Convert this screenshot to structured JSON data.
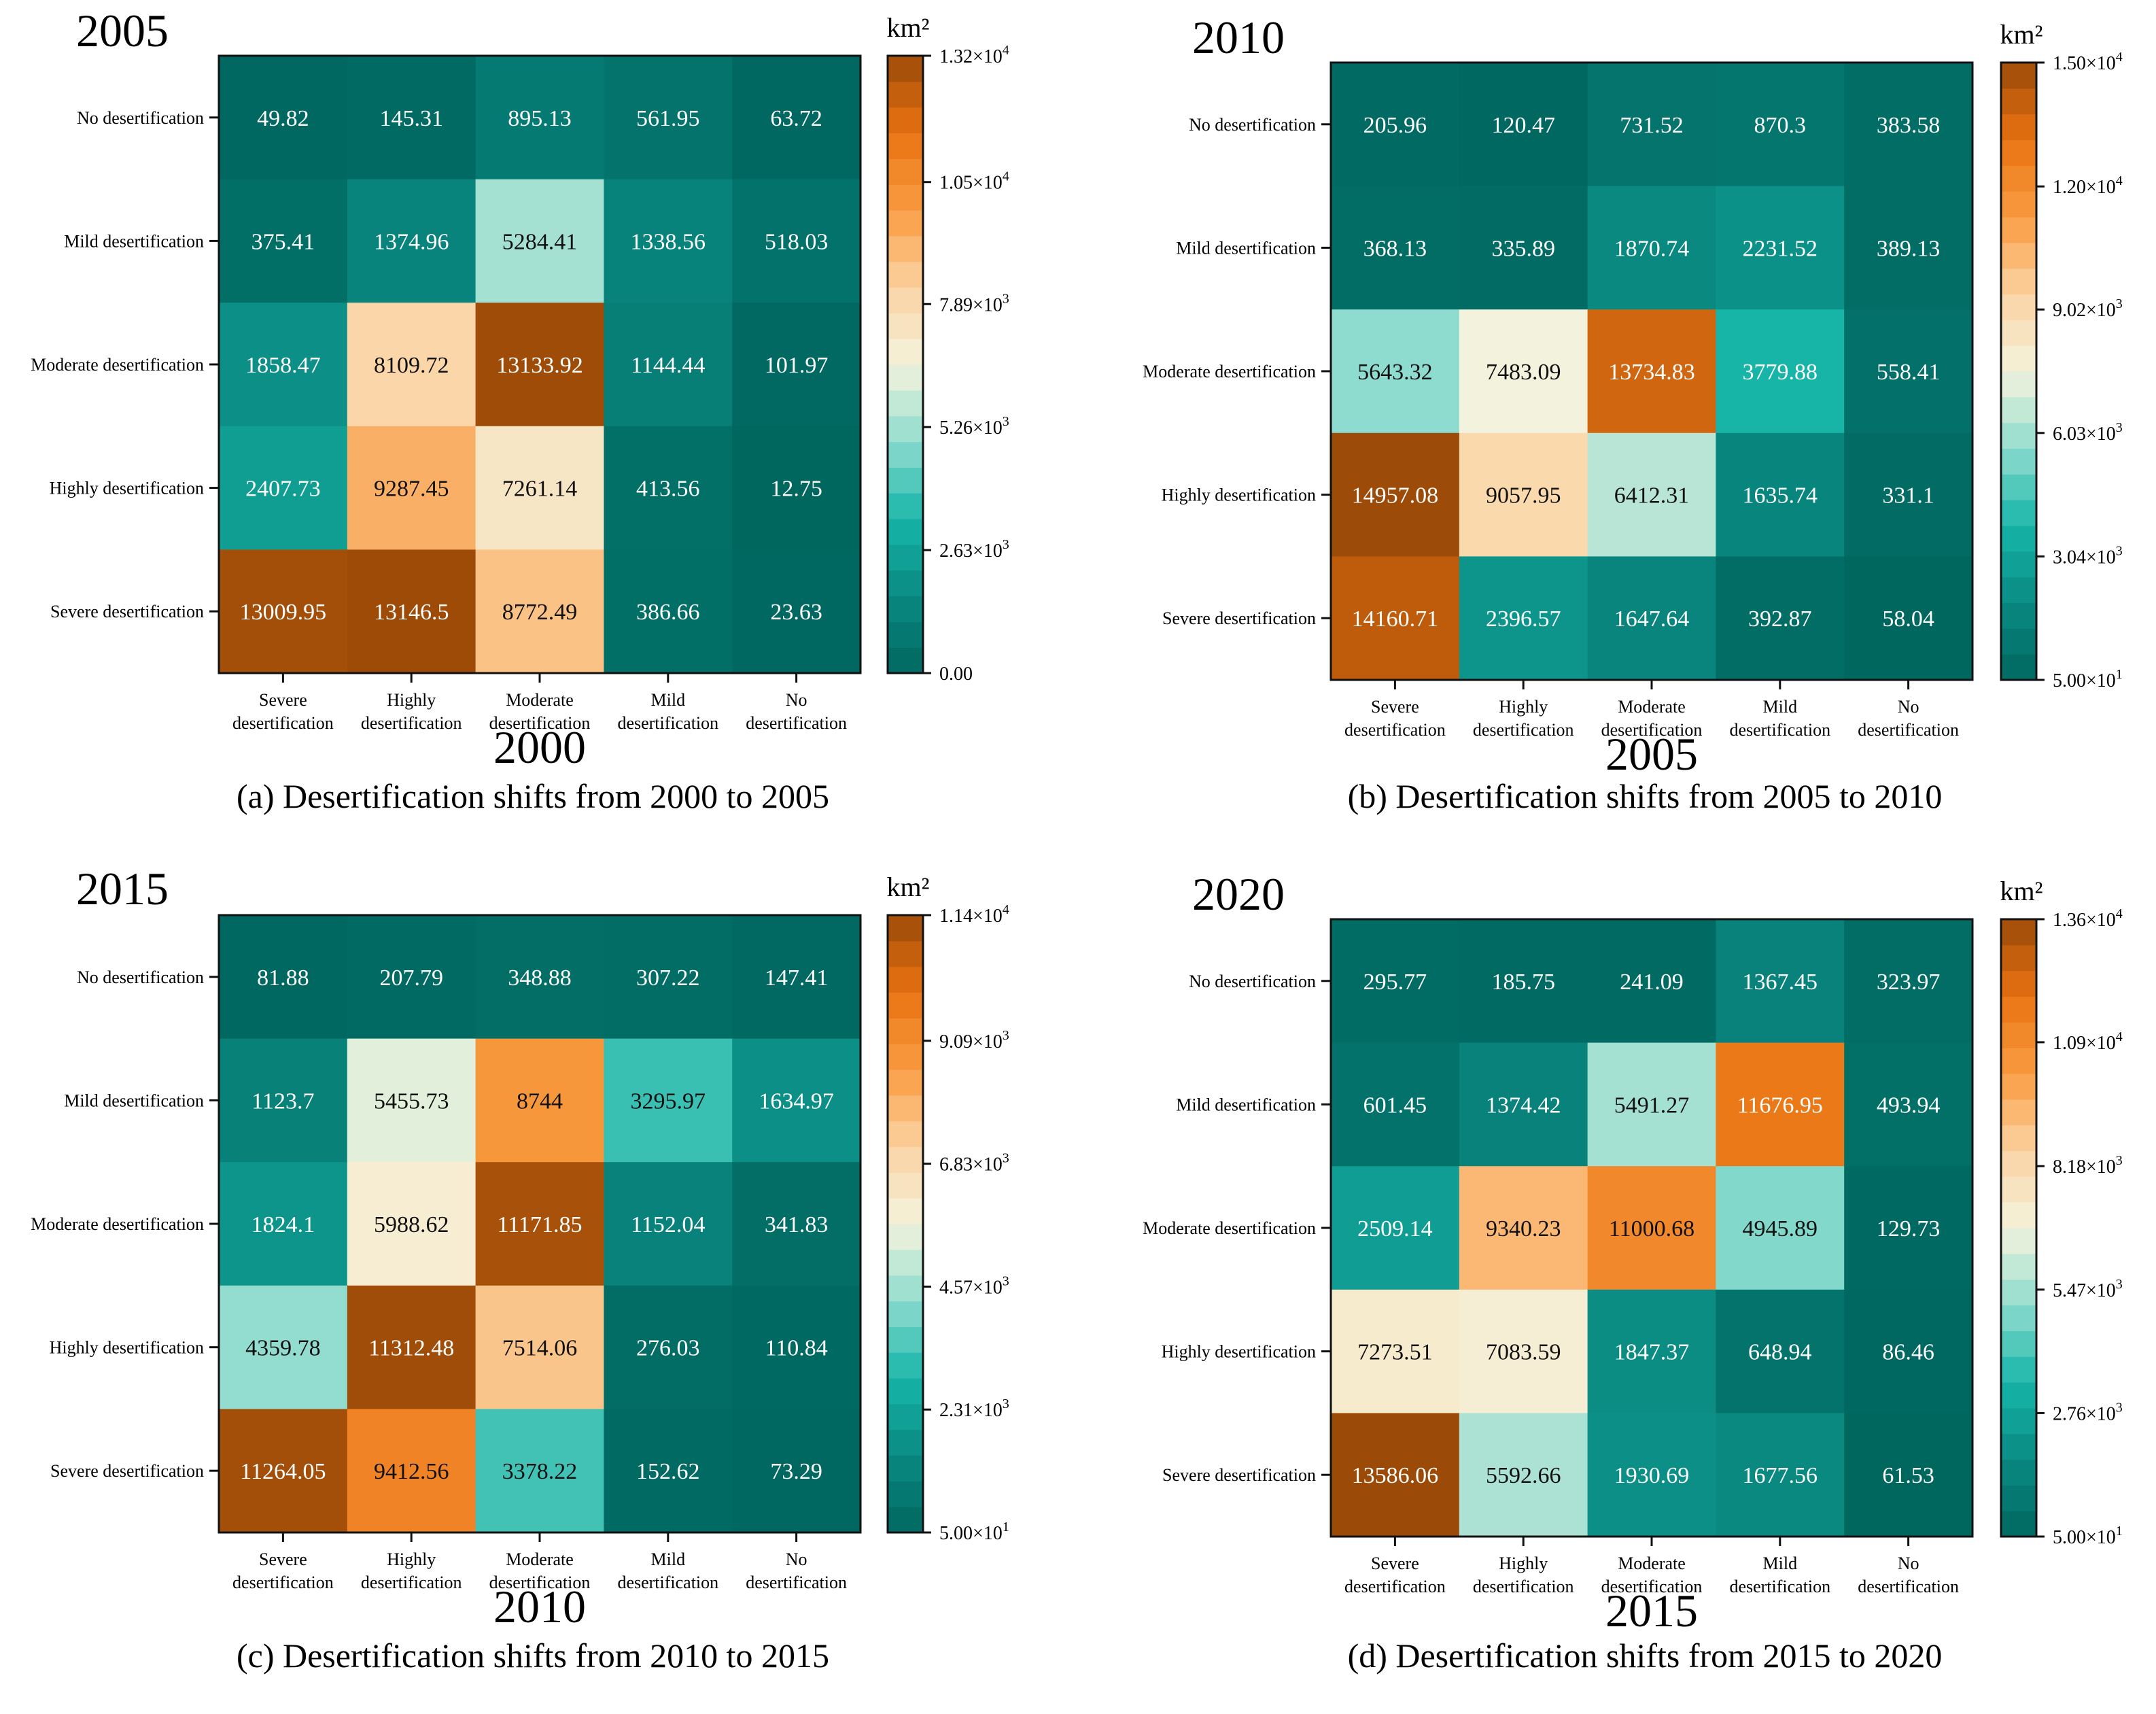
{
  "figure": {
    "panels": [
      {
        "top_year": "2005",
        "bottom_year": "2000",
        "caption": "(a) Desertification shifts from 2000 to 2005",
        "unit": "km²"
      },
      {
        "top_year": "2010",
        "bottom_year": "2005",
        "caption": "(b) Desertification shifts from 2005 to 2010",
        "unit": "km²"
      },
      {
        "top_year": "2015",
        "bottom_year": "2010",
        "caption": "(c) Desertification shifts from 2010 to 2015",
        "unit": "km²"
      },
      {
        "top_year": "2020",
        "bottom_year": "2015",
        "caption": "(d) Desertification shifts from 2015 to 2020",
        "unit": "km²"
      }
    ]
  },
  "colors": {
    "scale": [
      "#00675f",
      "#0a8a82",
      "#17b5a8",
      "#8fdccf",
      "#f5f3dd",
      "#fbd3a3",
      "#f89c42",
      "#ea7312",
      "#9b4a08"
    ]
  },
  "chart_data": [
    {
      "type": "heatmap",
      "title": "2005",
      "xlabel": "2000",
      "row_labels": [
        "No desertification",
        "Mild desertification",
        "Moderate desertification",
        "Highly desertification",
        "Severe desertification"
      ],
      "col_labels": [
        [
          "Severe",
          "desertification"
        ],
        [
          "Highly",
          "desertification"
        ],
        [
          "Moderate",
          "desertification"
        ],
        [
          "Mild",
          "desertification"
        ],
        [
          "No",
          "desertification"
        ]
      ],
      "values": [
        [
          49.82,
          145.31,
          895.13,
          561.95,
          63.72
        ],
        [
          375.41,
          1374.96,
          5284.41,
          1338.56,
          518.03
        ],
        [
          1858.47,
          8109.72,
          13133.92,
          1144.44,
          101.97
        ],
        [
          2407.73,
          9287.45,
          7261.14,
          413.56,
          12.75
        ],
        [
          13009.95,
          13146.5,
          8772.49,
          386.66,
          23.63
        ]
      ],
      "colorbar": {
        "min": 0,
        "max": 13200,
        "label": "km²",
        "ticks": [
          0,
          2630,
          5260,
          7890,
          10500,
          13200
        ],
        "tick_labels": [
          [
            "0.00",
            ""
          ],
          [
            "2.63×10",
            "3"
          ],
          [
            "5.26×10",
            "3"
          ],
          [
            "7.89×10",
            "3"
          ],
          [
            "1.05×10",
            "4"
          ],
          [
            "1.32×10",
            "4"
          ]
        ]
      }
    },
    {
      "type": "heatmap",
      "title": "2010",
      "xlabel": "2005",
      "row_labels": [
        "No desertification",
        "Mild desertification",
        "Moderate desertification",
        "Highly desertification",
        "Severe desertification"
      ],
      "col_labels": [
        [
          "Severe",
          "desertification"
        ],
        [
          "Highly",
          "desertification"
        ],
        [
          "Moderate",
          "desertification"
        ],
        [
          "Mild",
          "desertification"
        ],
        [
          "No",
          "desertification"
        ]
      ],
      "values": [
        [
          205.96,
          120.47,
          731.52,
          870.3,
          383.58
        ],
        [
          368.13,
          335.89,
          1870.74,
          2231.52,
          389.13
        ],
        [
          5643.32,
          7483.09,
          13734.83,
          3779.88,
          558.41
        ],
        [
          14957.08,
          9057.95,
          6412.31,
          1635.74,
          331.1
        ],
        [
          14160.71,
          2396.57,
          1647.64,
          392.87,
          58.04
        ]
      ],
      "colorbar": {
        "min": 50,
        "max": 15000,
        "label": "km²",
        "ticks": [
          50,
          3040,
          6030,
          9020,
          12000,
          15000
        ],
        "tick_labels": [
          [
            "5.00×10",
            "1"
          ],
          [
            "3.04×10",
            "3"
          ],
          [
            "6.03×10",
            "3"
          ],
          [
            "9.02×10",
            "3"
          ],
          [
            "1.20×10",
            "4"
          ],
          [
            "1.50×10",
            "4"
          ]
        ]
      }
    },
    {
      "type": "heatmap",
      "title": "2015",
      "xlabel": "2010",
      "row_labels": [
        "No desertification",
        "Mild desertification",
        "Moderate desertification",
        "Highly desertification",
        "Severe desertification"
      ],
      "col_labels": [
        [
          "Severe",
          "desertification"
        ],
        [
          "Highly",
          "desertification"
        ],
        [
          "Moderate",
          "desertification"
        ],
        [
          "Mild",
          "desertification"
        ],
        [
          "No",
          "desertification"
        ]
      ],
      "values": [
        [
          81.88,
          207.79,
          348.88,
          307.22,
          147.41
        ],
        [
          1123.7,
          5455.73,
          8744,
          3295.97,
          1634.97
        ],
        [
          1824.1,
          5988.62,
          11171.85,
          1152.04,
          341.83
        ],
        [
          4359.78,
          11312.48,
          7514.06,
          276.03,
          110.84
        ],
        [
          11264.05,
          9412.56,
          3378.22,
          152.62,
          73.29
        ]
      ],
      "colorbar": {
        "min": 50,
        "max": 11400,
        "label": "km²",
        "ticks": [
          50,
          2310,
          4570,
          6830,
          9090,
          11400
        ],
        "tick_labels": [
          [
            "5.00×10",
            "1"
          ],
          [
            "2.31×10",
            "3"
          ],
          [
            "4.57×10",
            "3"
          ],
          [
            "6.83×10",
            "3"
          ],
          [
            "9.09×10",
            "3"
          ],
          [
            "1.14×10",
            "4"
          ]
        ]
      }
    },
    {
      "type": "heatmap",
      "title": "2020",
      "xlabel": "2015",
      "row_labels": [
        "No desertification",
        "Mild desertification",
        "Moderate desertification",
        "Highly desertification",
        "Severe desertification"
      ],
      "col_labels": [
        [
          "Severe",
          "desertification"
        ],
        [
          "Highly",
          "desertification"
        ],
        [
          "Moderate",
          "desertification"
        ],
        [
          "Mild",
          "desertification"
        ],
        [
          "No",
          "desertification"
        ]
      ],
      "values": [
        [
          295.77,
          185.75,
          241.09,
          1367.45,
          323.97
        ],
        [
          601.45,
          1374.42,
          5491.27,
          11676.95,
          493.94
        ],
        [
          2509.14,
          9340.23,
          11000.68,
          4945.89,
          129.73
        ],
        [
          7273.51,
          7083.59,
          1847.37,
          648.94,
          86.46
        ],
        [
          13586.06,
          5592.66,
          1930.69,
          1677.56,
          61.53
        ]
      ],
      "colorbar": {
        "min": 50,
        "max": 13600,
        "label": "km²",
        "ticks": [
          50,
          2760,
          5470,
          8180,
          10900,
          13600
        ],
        "tick_labels": [
          [
            "5.00×10",
            "1"
          ],
          [
            "2.76×10",
            "3"
          ],
          [
            "5.47×10",
            "3"
          ],
          [
            "8.18×10",
            "3"
          ],
          [
            "1.09×10",
            "4"
          ],
          [
            "1.36×10",
            "4"
          ]
        ]
      }
    }
  ]
}
